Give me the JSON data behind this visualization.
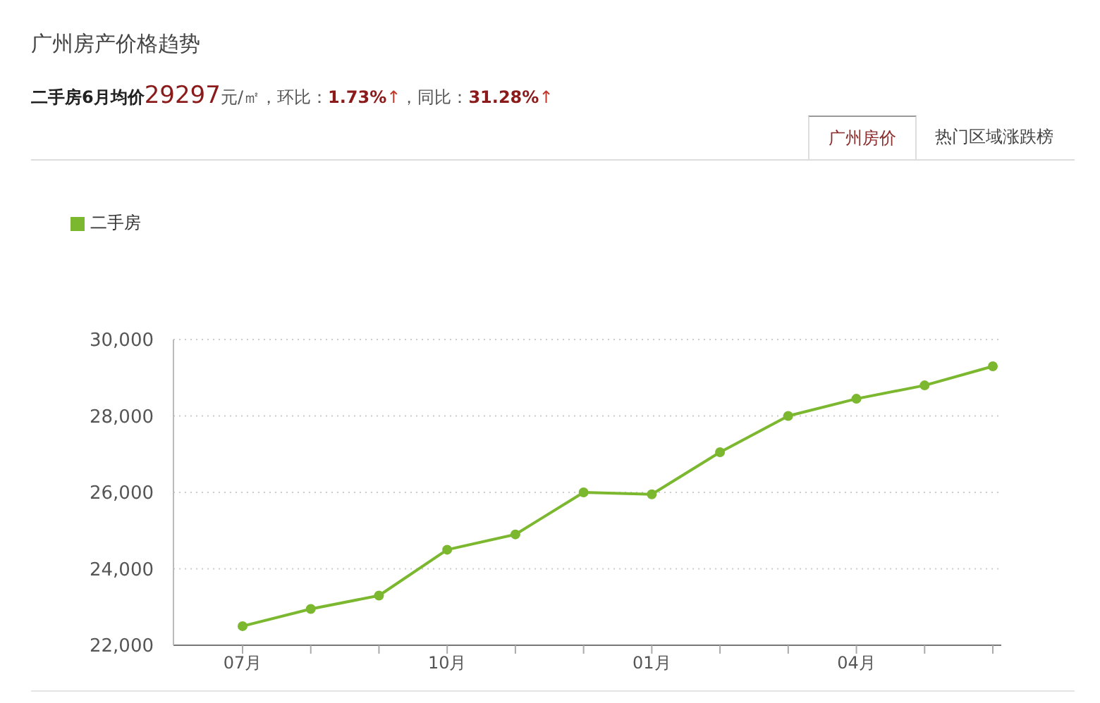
{
  "chart_data": {
    "type": "line",
    "title": "广州房产价格趋势",
    "subtitle": "二手房6月均价29297元/㎡，环比：1.73%↑，同比：31.28%↑",
    "annotations": [
      "广州房价",
      "热门区域涨跌榜"
    ],
    "categories": [
      "07月",
      null,
      null,
      "10月",
      null,
      null,
      "01月",
      null,
      null,
      "04月",
      null,
      null
    ],
    "series": [
      {
        "name": "二手房",
        "color": "#7cb82f",
        "values": [
          22500,
          22950,
          23300,
          24500,
          24900,
          26000,
          25950,
          27050,
          28000,
          28450,
          28800,
          29300
        ]
      }
    ],
    "ylim": [
      22000,
      30000
    ],
    "yticks": [
      {
        "value": 22000,
        "label": "22,000"
      },
      {
        "value": 24000,
        "label": "24,000"
      },
      {
        "value": 26000,
        "label": "26,000"
      },
      {
        "value": 28000,
        "label": "28,000"
      },
      {
        "value": 30000,
        "label": "30,000"
      }
    ],
    "grid": "y",
    "legend": "top left",
    "marker": "circle"
  }
}
